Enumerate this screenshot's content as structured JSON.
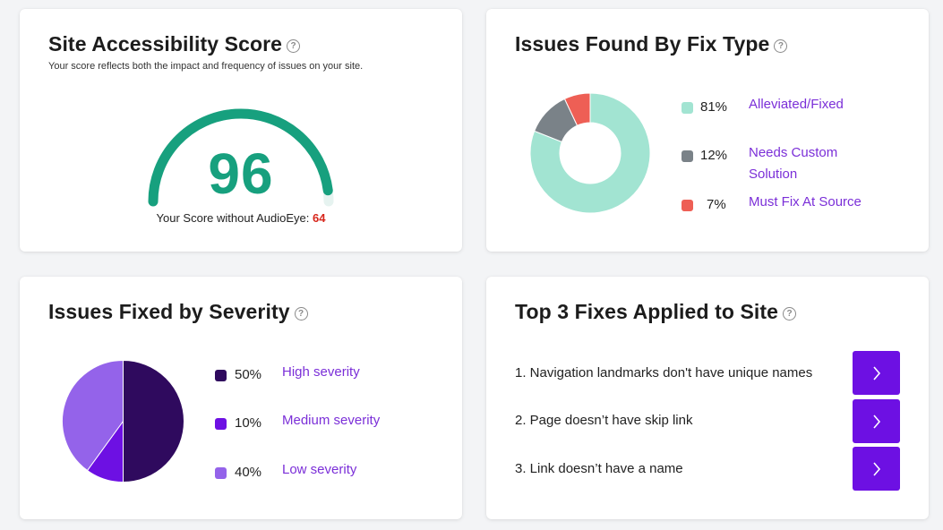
{
  "score_card": {
    "title": "Site Accessibility Score",
    "subtitle": "Your score reflects both the impact and frequency of issues on your site.",
    "score": 96,
    "score_display": "96",
    "caption_prefix": "Your Score without AudioEye:",
    "score_without": "64",
    "gauge_color": "#17a07e",
    "gauge_track_color": "#e6f3f0"
  },
  "fix_type_card": {
    "title": "Issues Found By Fix Type",
    "items": [
      {
        "percent": 81,
        "percent_label": "81%",
        "label_lines": [
          "Alleviated/Fixed"
        ],
        "color": "#a2e4d2"
      },
      {
        "percent": 12,
        "percent_label": "12%",
        "label_lines": [
          "Needs Custom",
          "Solution"
        ],
        "color": "#7a8288"
      },
      {
        "percent": 7,
        "percent_label": "7%",
        "label_lines": [
          "Must Fix At Source"
        ],
        "color": "#ee5f55"
      }
    ]
  },
  "severity_card": {
    "title": "Issues Fixed by Severity",
    "items": [
      {
        "percent": 50,
        "percent_label": "50%",
        "label": "High severity",
        "color": "#2f0a5e"
      },
      {
        "percent": 10,
        "percent_label": "10%",
        "label": "Medium severity",
        "color": "#6d10e3"
      },
      {
        "percent": 40,
        "percent_label": "40%",
        "label": "Low severity",
        "color": "#9463ea"
      }
    ]
  },
  "top_fixes_card": {
    "title": "Top 3 Fixes Applied to Site",
    "fixes": [
      {
        "text": "1. Navigation landmarks don't have unique names"
      },
      {
        "text": "2. Page doesn’t have skip link"
      },
      {
        "text": "3. Link doesn’t have a name"
      }
    ],
    "button_icon": "chevron-right-icon",
    "button_color": "#6d10e3"
  },
  "chart_data": [
    {
      "type": "pie",
      "categories": [
        "Alleviated/Fixed",
        "Needs Custom Solution",
        "Must Fix At Source"
      ],
      "values": [
        81,
        12,
        7
      ],
      "title": "Issues Found By Fix Type"
    },
    {
      "type": "pie",
      "categories": [
        "High severity",
        "Medium severity",
        "Low severity"
      ],
      "values": [
        50,
        10,
        40
      ],
      "title": "Issues Fixed by Severity"
    }
  ]
}
